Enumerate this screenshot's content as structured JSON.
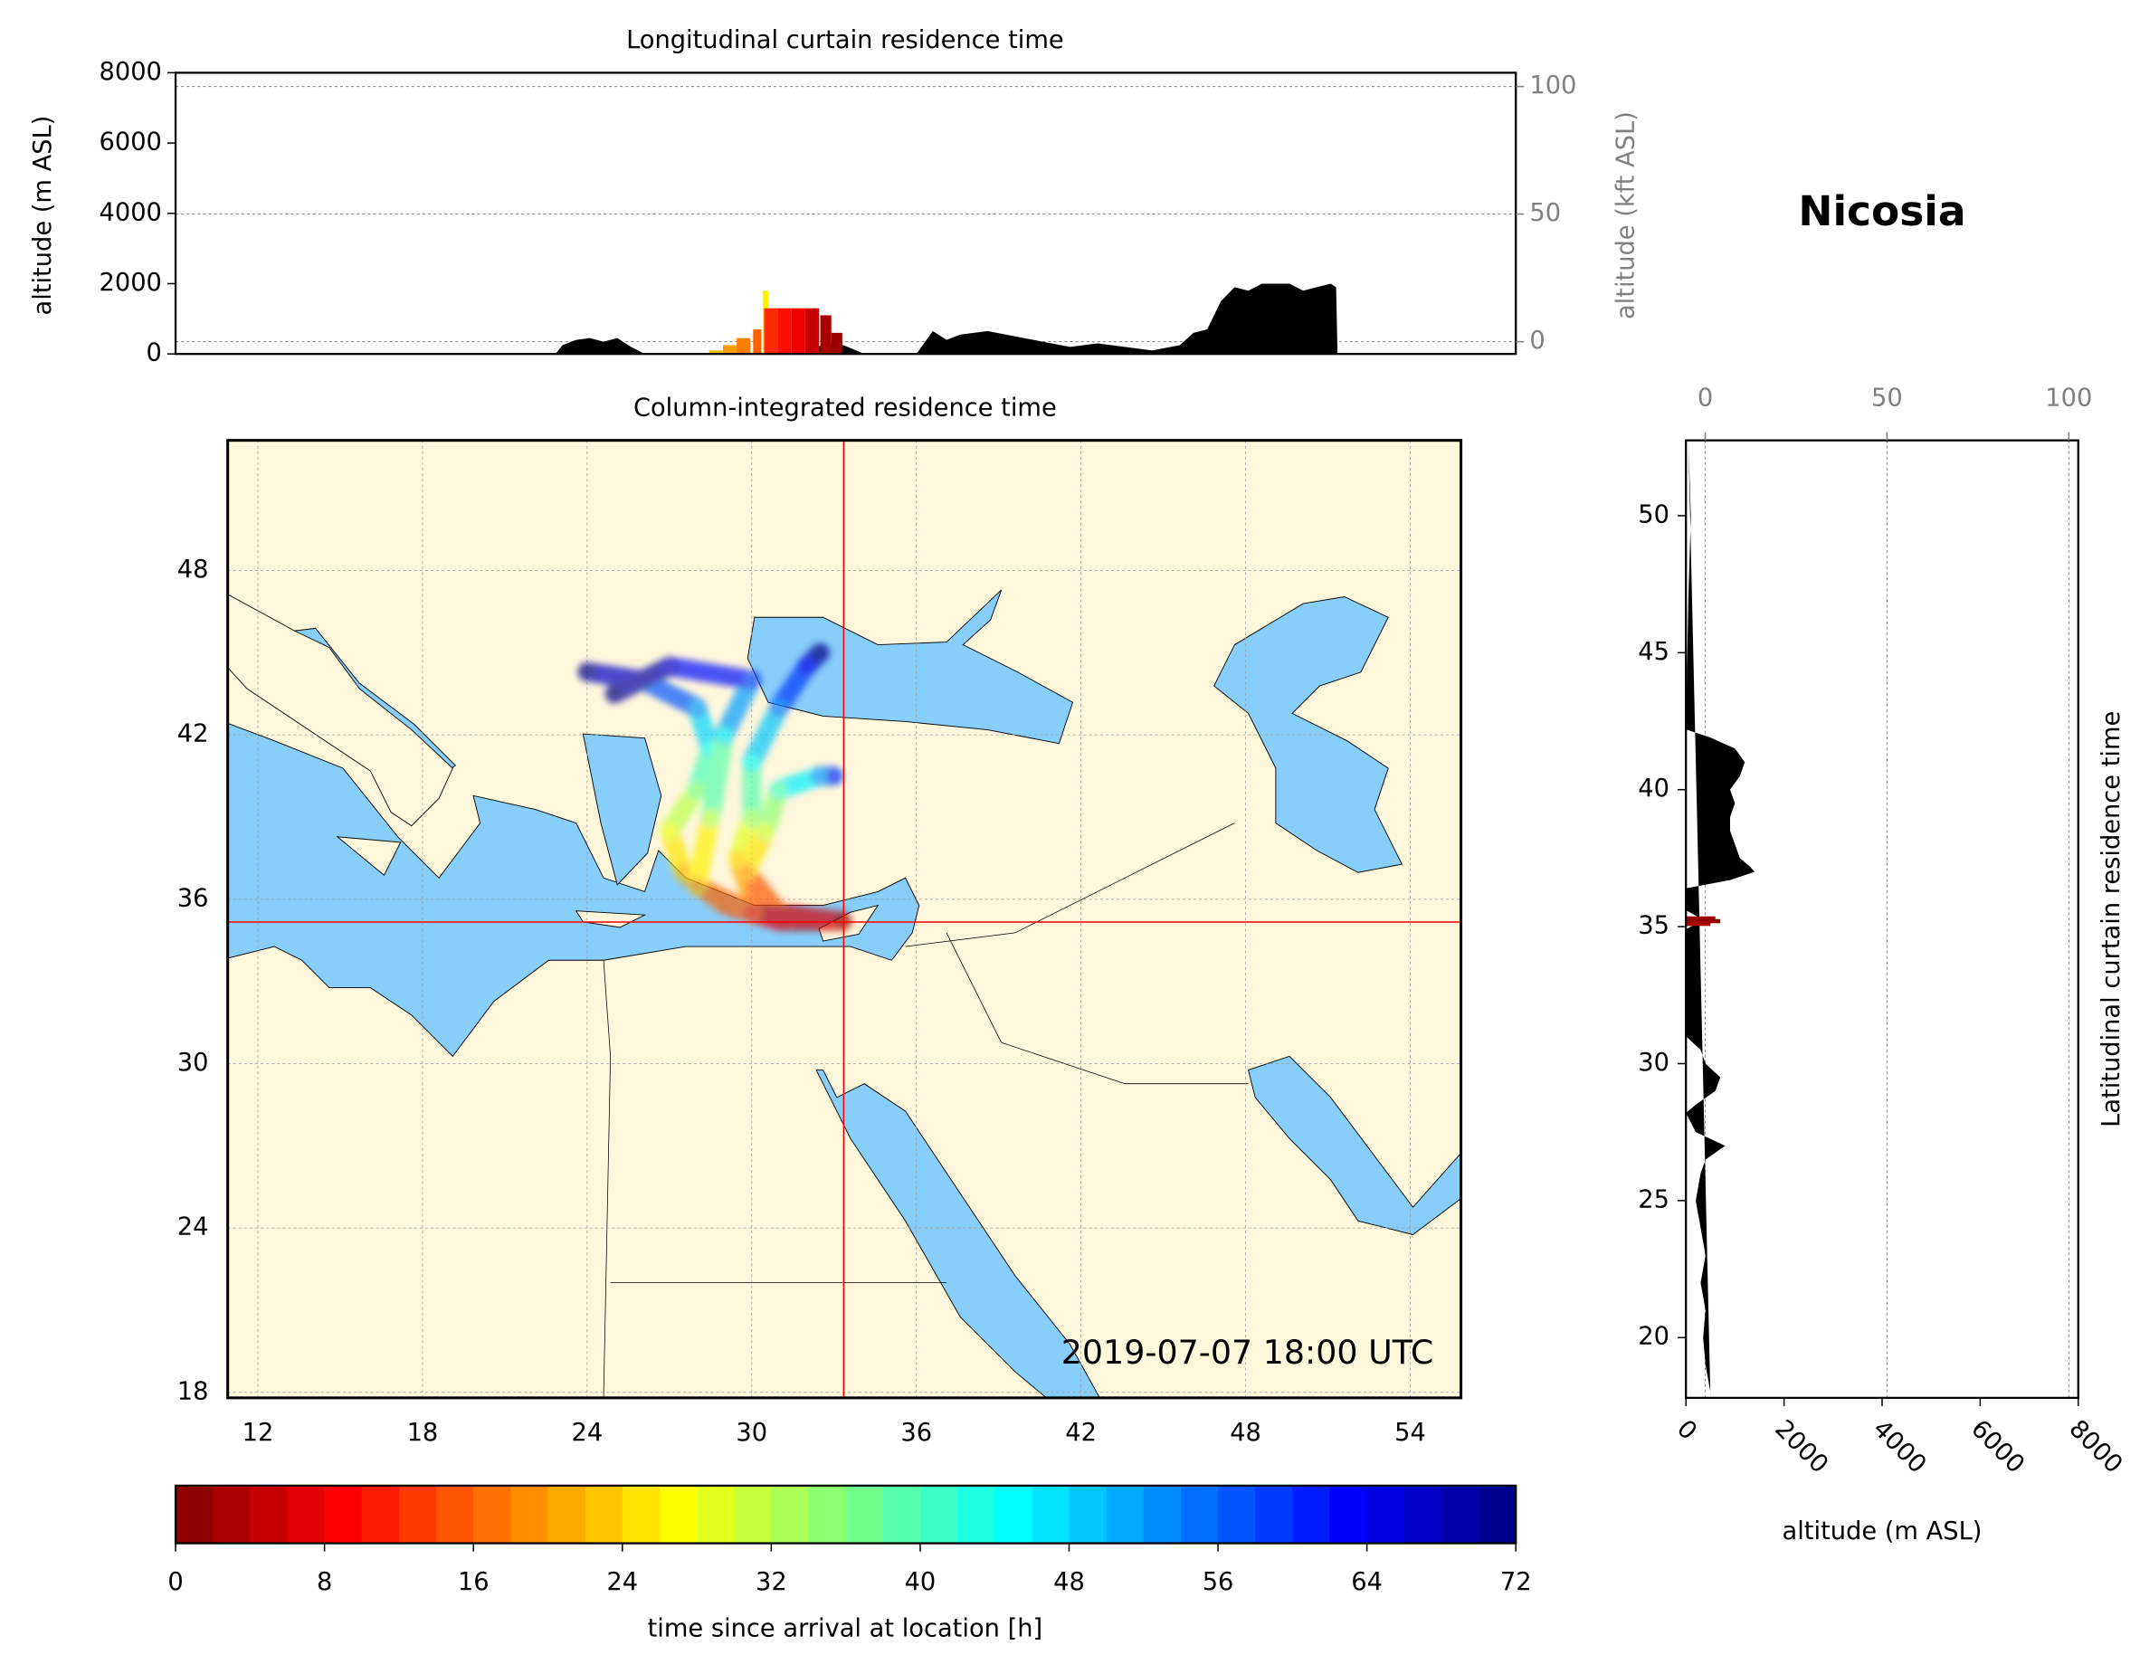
{
  "title": "Nicosia",
  "chart_data": [
    {
      "type": "area",
      "title": "Longitudinal curtain residence time",
      "ylabel": "altitude (m ASL)",
      "y2label": "altitude (kft ASL)",
      "x": [
        22.85,
        23.1,
        23.6,
        24.1,
        24.6,
        25.1,
        25.6,
        26.1,
        32.1,
        32.6,
        33.35,
        34.1,
        36.0,
        36.6,
        37.1,
        37.6,
        38.6,
        39.6,
        40.6,
        41.6,
        42.6,
        43.6,
        44.6,
        45.6,
        46.1,
        46.6,
        47.1,
        47.6,
        48.1,
        48.6,
        49.6,
        50.1,
        50.6,
        51.1,
        51.3,
        51.35
      ],
      "values": [
        0,
        250,
        400,
        450,
        350,
        450,
        200,
        0,
        0,
        300,
        250,
        0,
        0,
        650,
        400,
        550,
        650,
        500,
        350,
        200,
        300,
        200,
        100,
        250,
        600,
        700,
        1500,
        1900,
        1800,
        2000,
        2000,
        1800,
        1900,
        2000,
        1900,
        0
      ],
      "color": "#000000",
      "xlim": [
        9,
        57.85
      ],
      "ylim": [
        0,
        8000
      ],
      "yticks": [
        0,
        2000,
        4000,
        6000,
        8000
      ],
      "y2lim": [
        -4.8,
        105.4
      ],
      "y2ticks": [
        0,
        50,
        100
      ],
      "grid": true,
      "plume": {
        "x": [
          28.7,
          29.2,
          29.7,
          30.2,
          30.5,
          30.7,
          31.2,
          31.7,
          32.2,
          32.7,
          33.1
        ],
        "values": [
          100,
          250,
          450,
          700,
          1800,
          1300,
          1300,
          1300,
          1300,
          1100,
          600
        ],
        "hours": [
          22,
          20,
          18,
          16,
          26,
          12,
          10,
          8,
          5,
          3,
          2
        ]
      }
    },
    {
      "type": "map",
      "title": "Column-integrated residence time",
      "xlim": [
        10.9,
        55.85
      ],
      "ylim": [
        17.8,
        52.75
      ],
      "xticks": [
        12,
        18,
        24,
        30,
        36,
        42,
        48,
        54
      ],
      "yticks": [
        18,
        24,
        30,
        36,
        42,
        48
      ],
      "grid": true,
      "crosshair": {
        "lon": 33.35,
        "lat": 35.17,
        "color": "#ff0000"
      },
      "annotation": "2019-07-07 18:00 UTC",
      "trajectories": [
        {
          "lon": [
            33.3,
            31,
            29,
            27.5,
            27,
            28,
            28.5,
            28,
            26,
            24
          ],
          "lat": [
            35.2,
            35.2,
            35.8,
            37,
            38.5,
            40,
            41.5,
            43,
            44,
            44.3
          ],
          "hours": [
            0,
            6,
            14,
            22,
            28,
            36,
            44,
            52,
            62,
            72
          ]
        },
        {
          "lon": [
            33.3,
            31.5,
            30,
            29.5,
            30,
            30,
            31,
            32,
            32.5
          ],
          "lat": [
            35.2,
            35.3,
            36,
            37.5,
            39,
            41,
            43,
            44.5,
            45
          ],
          "hours": [
            0,
            8,
            16,
            24,
            34,
            44,
            54,
            64,
            72
          ]
        },
        {
          "lon": [
            33.3,
            31,
            29.8,
            30.5,
            31,
            32.5,
            33
          ],
          "lat": [
            35.2,
            35.5,
            37,
            38.5,
            40,
            40.5,
            40.5
          ],
          "hours": [
            0,
            10,
            20,
            30,
            40,
            52,
            60
          ]
        },
        {
          "lon": [
            33.3,
            30,
            28,
            28.5,
            29,
            30,
            27,
            25
          ],
          "lat": [
            35.2,
            35.5,
            36.5,
            39,
            42,
            44,
            44.5,
            43.5
          ],
          "hours": [
            0,
            12,
            20,
            32,
            46,
            58,
            66,
            72
          ]
        }
      ]
    },
    {
      "type": "harea",
      "ylabel": "Latitudinal curtain residence time",
      "xlabel": "altitude (m ASL)",
      "y": [
        52.75,
        50,
        47,
        42.2,
        41.9,
        41.5,
        41,
        40.5,
        40,
        39.5,
        39,
        38.5,
        38,
        37.5,
        37.2,
        37,
        36.7,
        36.4,
        35.6,
        35.3,
        35.1,
        34.9,
        31,
        30.5,
        30,
        29.5,
        29,
        28.5,
        28.2,
        27.5,
        27,
        26.5,
        26,
        25,
        24,
        23,
        22,
        21,
        20,
        19,
        18,
        17.8
      ],
      "values": [
        50,
        100,
        50,
        0,
        500,
        1000,
        1200,
        1100,
        900,
        1000,
        900,
        900,
        1000,
        1100,
        1300,
        1400,
        900,
        0,
        0,
        300,
        200,
        0,
        0,
        300,
        400,
        700,
        600,
        200,
        0,
        200,
        800,
        400,
        300,
        200,
        300,
        400,
        300,
        400,
        350,
        400,
        500,
        500
      ],
      "color": "#000000",
      "xlim": [
        0,
        8000
      ],
      "xticks": [
        0,
        2000,
        4000,
        6000,
        8000
      ],
      "ylim": [
        17.8,
        52.75
      ],
      "yticks": [
        20,
        25,
        30,
        35,
        40,
        45,
        50
      ],
      "x2lim": [
        -5.3,
        102.6
      ],
      "x2ticks": [
        0,
        50,
        100
      ],
      "grid": true,
      "plume": {
        "y": [
          35.3,
          35.2,
          35.1
        ],
        "values": [
          600,
          700,
          500
        ],
        "hours": [
          2,
          1,
          3
        ]
      }
    },
    {
      "type": "colorbar",
      "xlabel": "time since arrival at location [h]",
      "xlim": [
        0,
        72
      ],
      "xticks": [
        0,
        8,
        16,
        24,
        32,
        40,
        48,
        56,
        64,
        72
      ],
      "colormap": "jet"
    }
  ]
}
